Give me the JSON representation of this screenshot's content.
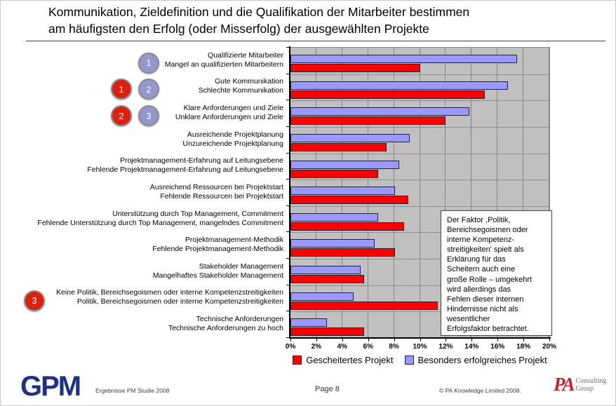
{
  "title": {
    "line1": "Kommunikation, Zieldefinition und die Qualifikation der Mitarbeiter bestimmen",
    "line2": "am häufigsten den Erfolg (oder Misserfolg) der ausgewählten Projekte"
  },
  "chart_data": {
    "type": "bar",
    "orientation": "horizontal",
    "xlim": [
      0,
      20
    ],
    "x_ticks": [
      "0%",
      "2%",
      "4%",
      "6%",
      "8%",
      "10%",
      "12%",
      "14%",
      "16%",
      "18%",
      "20%"
    ],
    "grid": true,
    "legend_position": "bottom",
    "plot_bg": "#c0c0c0",
    "categories": [
      {
        "success": "Qualifizierte Mitarbeiter",
        "failure": "Mangel an qualifizierten Mitarbeitern"
      },
      {
        "success": "Gute Kommunikation",
        "failure": "Schlechte Kommunikation"
      },
      {
        "success": "Klare Anforderungen und Ziele",
        "failure": "Unklare Anforderungen und Ziele"
      },
      {
        "success": "Ausreichende Projektplanung",
        "failure": "Unzureichende Projektplanung"
      },
      {
        "success": "Projektmanagement-Erfahrung auf Leitungsebene",
        "failure": "Fehlende Projektmanagement-Erfahrung auf Leitungsebene"
      },
      {
        "success": "Ausreichend Ressourcen bei Projektstart",
        "failure": "Fehlende Ressourcen bei Projektstart"
      },
      {
        "success": "Unterstützung durch Top Management, Commitment",
        "failure": "Fehlende Unterstützung durch Top Management, mangelndes Commitment"
      },
      {
        "success": "Projektmanagement-Methodik",
        "failure": "Fehlende Projektmanagement-Methodik"
      },
      {
        "success": "Stakeholder Management",
        "failure": "Mangelhaftes Stakeholder Management"
      },
      {
        "success": "Keine Politik, Bereichsegoismen oder interne Kompetenzstreitigkeiten",
        "failure": "Politik, Bereichsegoismen oder interne Kompetenzstreitigkeiten"
      },
      {
        "success": "Technische Anforderungen",
        "failure": "Technische Anforderungen zu hoch"
      }
    ],
    "series": [
      {
        "name": "Gescheitertes Projekt",
        "color": "#ff0000",
        "values": [
          10.0,
          15.0,
          12.0,
          7.4,
          6.8,
          9.1,
          8.8,
          8.1,
          5.7,
          11.4,
          5.7
        ]
      },
      {
        "name": "Besonders erfolgreiches Projekt",
        "color": "#9999ff",
        "values": [
          17.5,
          16.8,
          13.8,
          9.2,
          8.4,
          8.1,
          6.8,
          6.5,
          5.4,
          4.9,
          2.8
        ]
      }
    ]
  },
  "badges": [
    {
      "row": 0,
      "style": "blue",
      "label": "1",
      "column": 2
    },
    {
      "row": 1,
      "style": "red",
      "label": "1",
      "column": 1
    },
    {
      "row": 1,
      "style": "blue",
      "label": "2",
      "column": 2
    },
    {
      "row": 2,
      "style": "red",
      "label": "2",
      "column": 1
    },
    {
      "row": 2,
      "style": "blue",
      "label": "3",
      "column": 2
    },
    {
      "row": 9,
      "style": "red",
      "label": "3",
      "column": 0
    }
  ],
  "annotation": {
    "text": "Der Faktor ,Politik,\nBereichsegoismen oder\ninterne Kompetenz-\nstreitigkeiten' spielt als\nErklärung für das\nScheitern auch eine\ngroße Rolle – umgekehrt\nwird allerdings das\nFehlen dieser internen\nHindernisse nicht als\nwesentlicher\nErfolgsfaktor betrachtet."
  },
  "footer": {
    "logo_left": "GPM",
    "study_label": "Ergebnisse PM Studie 2008",
    "page_label": "Page 8",
    "copyright": "© PA Knowledge Limited 2008.",
    "logo_right_main": "PA",
    "logo_right_sub1": "Consulting",
    "logo_right_sub2": "Group"
  },
  "palette": {
    "bar_failed": "#ff0000",
    "bar_success": "#9999ff",
    "plot_bg": "#c0c0c0",
    "badge_red": "#dd1f10",
    "badge_blue": "#9596cd",
    "gpm_navy": "#20308a",
    "pa_red": "#cb2026"
  }
}
